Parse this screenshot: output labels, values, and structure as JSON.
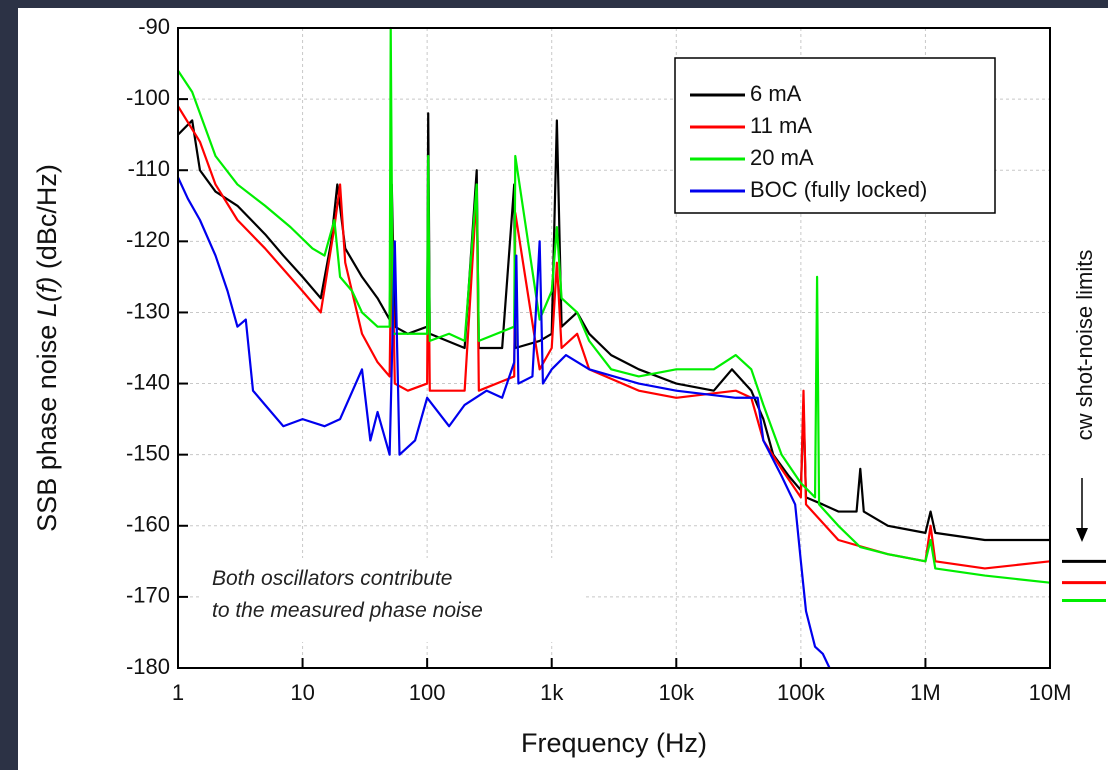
{
  "chart_data": {
    "type": "line",
    "x_label": "Frequency (Hz)",
    "y_label": [
      "SSB phase noise ",
      "L(f)",
      " (dBc/Hz)"
    ],
    "xscale": "log",
    "xlim": [
      1,
      10000000
    ],
    "xticks": [
      1,
      10,
      100,
      {
        "value": 1000,
        "label": "1k"
      },
      {
        "value": 10000,
        "label": "10k"
      },
      {
        "value": 100000,
        "label": "100k"
      },
      {
        "value": 1000000,
        "label": "1M"
      },
      {
        "value": 10000000,
        "label": "10M"
      }
    ],
    "ylim": [
      -180,
      -90
    ],
    "yticks": [
      -180,
      -170,
      -160,
      -150,
      -140,
      -130,
      -120,
      -110,
      -100,
      -90
    ],
    "grid": true,
    "legend": "upper right",
    "annotation": [
      "Both oscillators contribute",
      "to the measured phase noise"
    ],
    "series": [
      {
        "name": "6 mA",
        "color": "#000000",
        "x": [
          1,
          1.3,
          1.5,
          2,
          3,
          5,
          7,
          10,
          14,
          17,
          19,
          22,
          30,
          40,
          50,
          52,
          55,
          70,
          100,
          102,
          105,
          200,
          250,
          260,
          400,
          500,
          510,
          800,
          1000,
          1100,
          1200,
          1600,
          2000,
          3000,
          5000,
          10000,
          20000,
          28000,
          40000,
          50000,
          60000,
          80000,
          100000,
          105000,
          110000,
          150000,
          200000,
          280000,
          300000,
          320000,
          500000,
          1000000,
          1100000,
          1200000,
          3000000,
          10000000
        ],
        "values": [
          -105,
          -103,
          -110,
          -113,
          -115,
          -119,
          -122,
          -125,
          -128,
          -120,
          -112,
          -121,
          -125,
          -128,
          -131,
          -112,
          -132,
          -133,
          -132,
          -102,
          -133,
          -135,
          -110,
          -135,
          -135,
          -112,
          -135,
          -134,
          -133,
          -103,
          -132,
          -130,
          -133,
          -136,
          -138,
          -140,
          -141,
          -138,
          -141,
          -145,
          -150,
          -153,
          -155,
          -143,
          -156,
          -157,
          -158,
          -158,
          -152,
          -158,
          -160,
          -161,
          -158,
          -161,
          -162,
          -162
        ]
      },
      {
        "name": "11 mA",
        "color": "#ff0000",
        "x": [
          1,
          1.5,
          2,
          3,
          5,
          10,
          14,
          18,
          20,
          22,
          30,
          40,
          50,
          52,
          55,
          70,
          100,
          102,
          105,
          200,
          250,
          260,
          500,
          510,
          800,
          1000,
          1100,
          1200,
          1600,
          2000,
          5000,
          10000,
          30000,
          40000,
          50000,
          70000,
          100000,
          105000,
          110000,
          200000,
          500000,
          1000000,
          1100000,
          1200000,
          3000000,
          10000000
        ],
        "values": [
          -101,
          -106,
          -112,
          -117,
          -121,
          -127,
          -130,
          -118,
          -112,
          -123,
          -133,
          -137,
          -139,
          -116,
          -140,
          -141,
          -140,
          -117,
          -141,
          -141,
          -113,
          -141,
          -139,
          -116,
          -138,
          -135,
          -123,
          -135,
          -133,
          -138,
          -141,
          -142,
          -141,
          -142,
          -148,
          -152,
          -156,
          -141,
          -157,
          -162,
          -164,
          -165,
          -160,
          -165,
          -166,
          -165
        ]
      },
      {
        "name": "20 mA",
        "color": "#00ee00",
        "x": [
          1,
          1.3,
          2,
          3,
          5,
          8,
          12,
          15,
          18,
          20,
          25,
          30,
          40,
          50,
          51,
          53,
          70,
          100,
          102,
          105,
          150,
          200,
          250,
          260,
          500,
          510,
          800,
          1000,
          1100,
          1200,
          1600,
          2000,
          3000,
          5000,
          10000,
          20000,
          30000,
          40000,
          50000,
          70000,
          100000,
          130000,
          135000,
          140000,
          200000,
          300000,
          500000,
          1000000,
          1100000,
          1200000,
          3000000,
          10000000
        ],
        "values": [
          -96,
          -99,
          -108,
          -112,
          -115,
          -118,
          -121,
          -122,
          -117,
          -125,
          -127,
          -130,
          -132,
          -132,
          -90,
          -133,
          -133,
          -133,
          -108,
          -134,
          -133,
          -134,
          -112,
          -134,
          -132,
          -108,
          -131,
          -127,
          -118,
          -128,
          -130,
          -134,
          -138,
          -139,
          -138,
          -138,
          -136,
          -138,
          -143,
          -150,
          -154,
          -156,
          -125,
          -157,
          -160,
          -163,
          -164,
          -165,
          -162,
          -166,
          -167,
          -168
        ]
      },
      {
        "name": "BOC (fully locked)",
        "color": "#0000ee",
        "x": [
          1,
          1.2,
          1.5,
          2,
          2.5,
          3,
          3.5,
          4,
          5,
          7,
          10,
          15,
          20,
          30,
          35,
          40,
          50,
          55,
          60,
          80,
          100,
          150,
          200,
          300,
          400,
          500,
          520,
          540,
          700,
          800,
          850,
          1000,
          1300,
          2000,
          5000,
          10000,
          30000,
          45000,
          50000,
          70000,
          90000,
          100000,
          110000,
          130000,
          150000,
          170000
        ],
        "values": [
          -111,
          -114,
          -117,
          -122,
          -127,
          -132,
          -131,
          -141,
          -143,
          -146,
          -145,
          -146,
          -145,
          -138,
          -148,
          -144,
          -150,
          -120,
          -150,
          -148,
          -142,
          -146,
          -143,
          -141,
          -142,
          -137,
          -122,
          -140,
          -139,
          -120,
          -140,
          -138,
          -136,
          -138,
          -140,
          -141,
          -142,
          -142,
          -148,
          -153,
          -157,
          -165,
          -172,
          -177,
          -178,
          -180
        ]
      }
    ],
    "shot_noise": {
      "label": "cw shot-noise limits",
      "levels": [
        {
          "value": -165,
          "color": "#000000"
        },
        {
          "value": -168,
          "color": "#ff0000"
        },
        {
          "value": -170.5,
          "color": "#00ee00"
        }
      ]
    }
  }
}
